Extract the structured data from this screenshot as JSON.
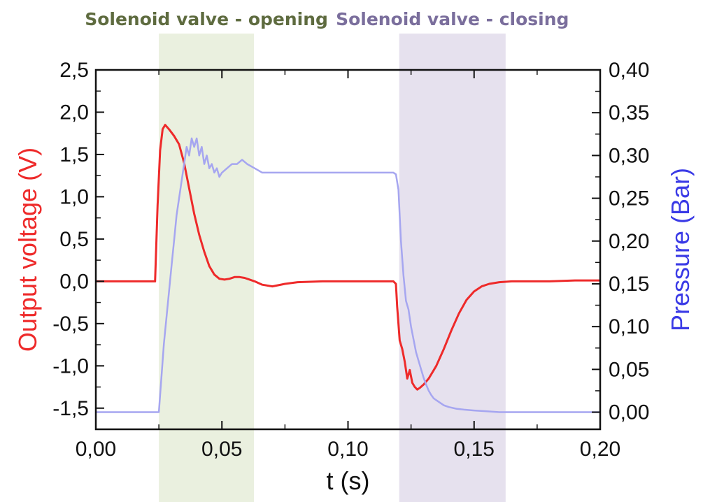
{
  "chart_data": {
    "type": "line",
    "xlabel": "t (s)",
    "ylabel_left": "Output voltage (V)",
    "ylabel_right": "Pressure (Bar)",
    "xlim": [
      0,
      0.2
    ],
    "ylim_left": [
      -1.75,
      2.5
    ],
    "ylim_right": [
      -0.02,
      0.4
    ],
    "grid": false,
    "x_ticks": [
      "0,00",
      "0,05",
      "0,10",
      "0,15",
      "0,20"
    ],
    "x_tick_values": [
      0,
      0.05,
      0.1,
      0.15,
      0.2
    ],
    "y_left_ticks": [
      "2,5",
      "2,0",
      "1,5",
      "1,0",
      "0,5",
      "0,0",
      "-0,5",
      "-1,0",
      "-1,5"
    ],
    "y_left_tick_values": [
      2.5,
      2.0,
      1.5,
      1.0,
      0.5,
      0.0,
      -0.5,
      -1.0,
      -1.5
    ],
    "y_right_ticks": [
      "0,40",
      "0,35",
      "0,30",
      "0,25",
      "0,20",
      "0,15",
      "0,10",
      "0,05",
      "0,00"
    ],
    "y_right_tick_values": [
      0.4,
      0.35,
      0.3,
      0.25,
      0.2,
      0.15,
      0.1,
      0.05,
      0.0
    ],
    "regions": [
      {
        "label": "Solenoid valve - opening",
        "x_start": 0.025,
        "x_end": 0.0627,
        "color": "#eaf0df",
        "label_color": "#5e6b3f"
      },
      {
        "label": "Solenoid valve - closing",
        "x_start": 0.1203,
        "x_end": 0.1625,
        "color": "#e6e1ee",
        "label_color": "#7a6e9c"
      }
    ],
    "series": [
      {
        "axis": "left",
        "color": "#ee2a2a",
        "x": [
          0,
          0.01,
          0.02,
          0.0235,
          0.0245,
          0.0255,
          0.0265,
          0.0275,
          0.029,
          0.031,
          0.033,
          0.035,
          0.037,
          0.039,
          0.041,
          0.043,
          0.045,
          0.047,
          0.049,
          0.051,
          0.053,
          0.055,
          0.057,
          0.059,
          0.061,
          0.063,
          0.066,
          0.07,
          0.075,
          0.08,
          0.09,
          0.1,
          0.11,
          0.118,
          0.119,
          0.1195,
          0.1205,
          0.1215,
          0.1225,
          0.1235,
          0.1245,
          0.1255,
          0.1265,
          0.1275,
          0.1285,
          0.13,
          0.132,
          0.135,
          0.138,
          0.141,
          0.144,
          0.147,
          0.15,
          0.153,
          0.156,
          0.16,
          0.165,
          0.17,
          0.18,
          0.19,
          0.2
        ],
        "values": [
          0,
          0,
          0,
          0.0,
          0.9,
          1.55,
          1.8,
          1.85,
          1.8,
          1.72,
          1.62,
          1.4,
          1.1,
          0.8,
          0.55,
          0.35,
          0.18,
          0.08,
          0.03,
          0.02,
          0.03,
          0.05,
          0.05,
          0.04,
          0.02,
          0.0,
          -0.04,
          -0.06,
          -0.03,
          -0.01,
          0,
          0,
          0,
          0,
          -0.03,
          -0.3,
          -0.7,
          -0.8,
          -0.95,
          -1.15,
          -1.05,
          -1.2,
          -1.25,
          -1.28,
          -1.26,
          -1.22,
          -1.15,
          -1.0,
          -0.8,
          -0.58,
          -0.38,
          -0.22,
          -0.12,
          -0.06,
          -0.03,
          -0.01,
          0,
          0,
          0,
          0.01,
          0.01
        ]
      },
      {
        "axis": "right",
        "color": "#a6a6f0",
        "x": [
          0,
          0.01,
          0.02,
          0.024,
          0.025,
          0.026,
          0.027,
          0.028,
          0.029,
          0.03,
          0.031,
          0.032,
          0.033,
          0.034,
          0.035,
          0.036,
          0.037,
          0.038,
          0.039,
          0.04,
          0.041,
          0.042,
          0.043,
          0.044,
          0.045,
          0.046,
          0.047,
          0.048,
          0.049,
          0.05,
          0.052,
          0.054,
          0.056,
          0.058,
          0.06,
          0.063,
          0.066,
          0.07,
          0.08,
          0.09,
          0.1,
          0.11,
          0.118,
          0.119,
          0.12,
          0.121,
          0.122,
          0.123,
          0.124,
          0.125,
          0.126,
          0.127,
          0.128,
          0.129,
          0.13,
          0.131,
          0.132,
          0.133,
          0.134,
          0.136,
          0.138,
          0.14,
          0.143,
          0.146,
          0.15,
          0.155,
          0.16,
          0.17,
          0.18,
          0.19,
          0.2
        ],
        "values": [
          0,
          0,
          0,
          0,
          0.0,
          0.04,
          0.08,
          0.11,
          0.14,
          0.17,
          0.2,
          0.23,
          0.25,
          0.27,
          0.29,
          0.31,
          0.3,
          0.32,
          0.31,
          0.32,
          0.3,
          0.31,
          0.29,
          0.3,
          0.285,
          0.29,
          0.28,
          0.285,
          0.275,
          0.28,
          0.285,
          0.29,
          0.29,
          0.295,
          0.29,
          0.285,
          0.28,
          0.28,
          0.28,
          0.28,
          0.28,
          0.28,
          0.28,
          0.278,
          0.26,
          0.2,
          0.16,
          0.13,
          0.12,
          0.1,
          0.085,
          0.07,
          0.06,
          0.05,
          0.04,
          0.032,
          0.025,
          0.02,
          0.016,
          0.012,
          0.008,
          0.006,
          0.004,
          0.003,
          0.002,
          0.001,
          0,
          0,
          0,
          0,
          0
        ]
      }
    ]
  }
}
